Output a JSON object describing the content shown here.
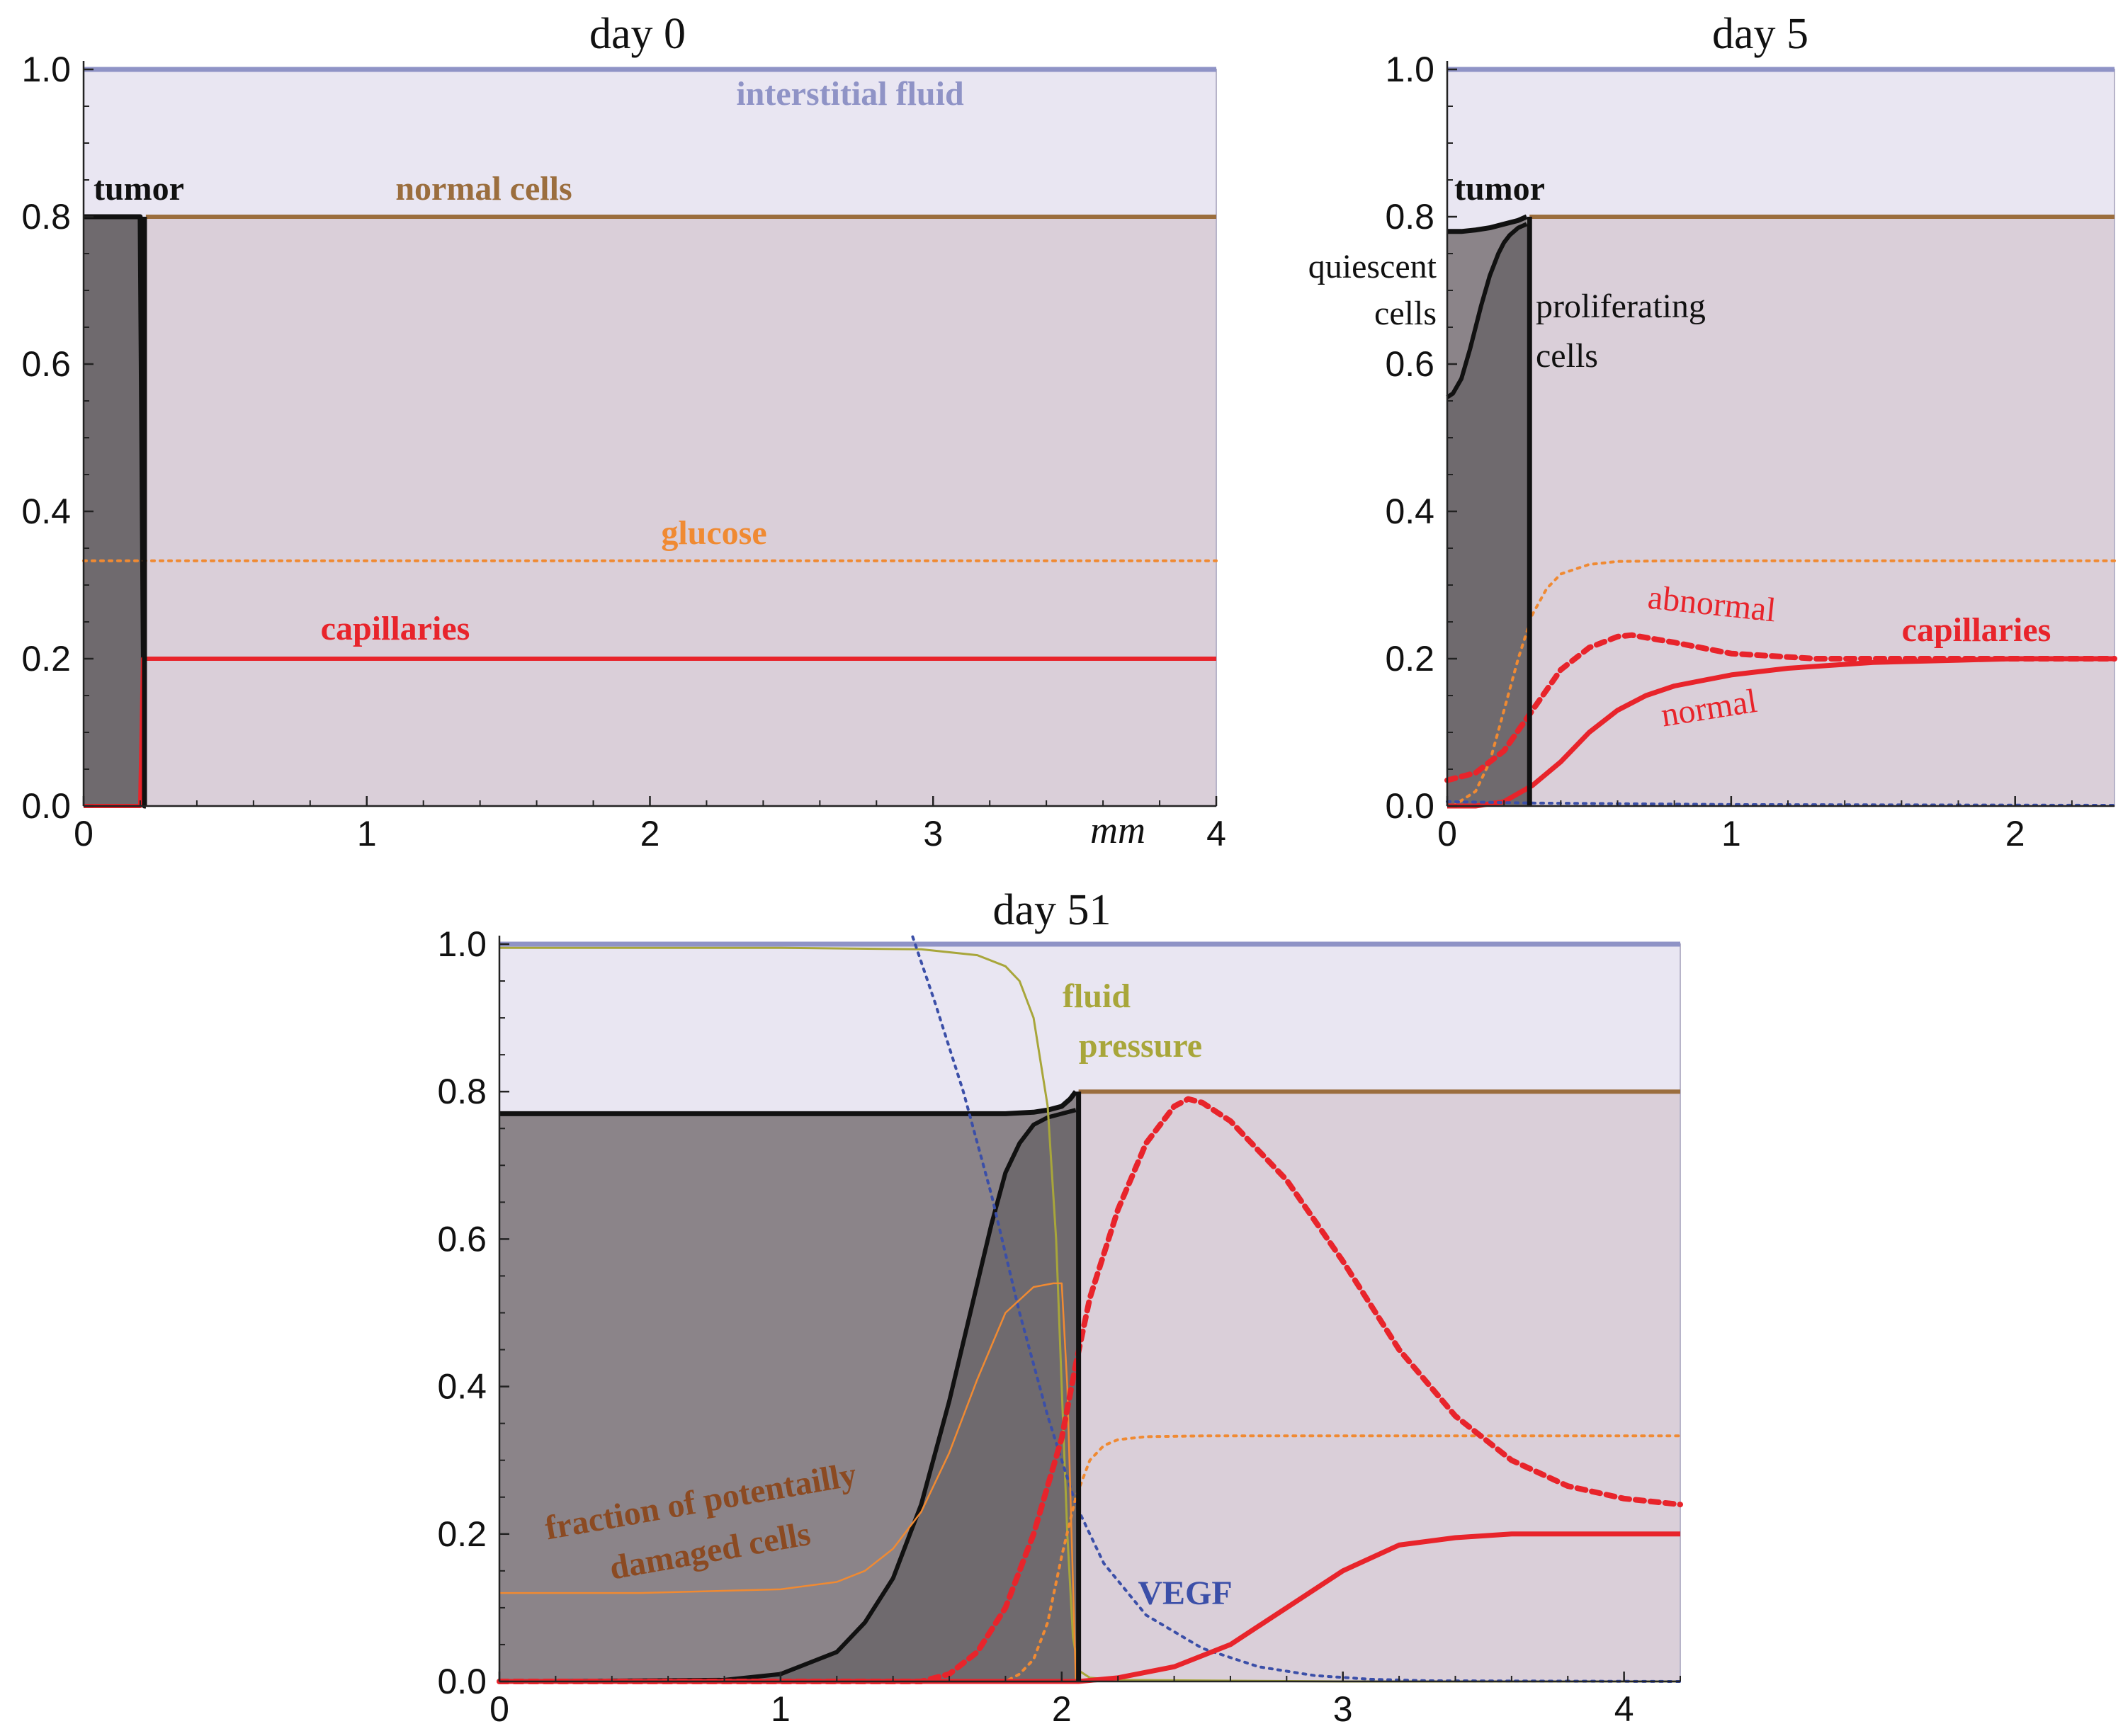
{
  "colors": {
    "fluid_fill": "#e9e6f2",
    "normal_fill": "#dacfd9",
    "tumor_dark": "#6f6a6e",
    "tumor_light": "#8b8489",
    "interstitial_line": "#8f93c6",
    "normal_line": "#9b6e3e",
    "tumor_line": "#111111",
    "capillary": "#e8242b",
    "glucose": "#f08a32",
    "fluid_pressure": "#a8a63a",
    "vegf": "#3b4fa8",
    "damaged": "#8b4a22"
  },
  "chart_data": [
    {
      "id": "day0",
      "type": "area",
      "title": "day 0",
      "xlabel": "mm",
      "ylabel": "",
      "xlim": [
        0,
        4
      ],
      "ylim": [
        0,
        1.0
      ],
      "xticks": [
        "0",
        "1",
        "2",
        "3",
        "4"
      ],
      "yticks": [
        "0.0",
        "0.2",
        "0.4",
        "0.6",
        "0.8",
        "1.0"
      ],
      "labels": {
        "interstitial": "interstitial fluid",
        "tumor": "tumor",
        "normal": "normal cells",
        "glucose": "glucose",
        "capillaries": "capillaries"
      },
      "series": [
        {
          "name": "interstitial fluid",
          "x": [
            0,
            4
          ],
          "values": [
            1.0,
            1.0
          ]
        },
        {
          "name": "normal cells",
          "x": [
            0.22,
            4
          ],
          "values": [
            0.8,
            0.8
          ]
        },
        {
          "name": "tumor",
          "x": [
            0,
            0.2,
            0.215,
            0.22
          ],
          "values": [
            0.8,
            0.8,
            0.0,
            0.0
          ]
        },
        {
          "name": "glucose",
          "x": [
            0,
            4
          ],
          "values": [
            0.333,
            0.333
          ]
        },
        {
          "name": "capillaries",
          "x": [
            0,
            0.2,
            0.21,
            4
          ],
          "values": [
            0.0,
            0.0,
            0.2,
            0.2
          ]
        }
      ]
    },
    {
      "id": "day5",
      "type": "area",
      "title": "day 5",
      "xlim": [
        0,
        2.35
      ],
      "ylim": [
        0,
        1.0
      ],
      "xticks": [
        "0",
        "1",
        "2"
      ],
      "yticks": [
        "0.0",
        "0.2",
        "0.4",
        "0.6",
        "0.8",
        "1.0"
      ],
      "labels": {
        "tumor": "tumor",
        "quiescent_1": "quiescent",
        "quiescent_2": "cells",
        "proliferating_1": "proliferating",
        "proliferating_2": "cells",
        "abnormal": "abnormal",
        "normal": "normal",
        "capillaries": "capillaries"
      },
      "series": [
        {
          "name": "interstitial fluid",
          "x": [
            0,
            2.35
          ],
          "values": [
            1.0,
            1.0
          ]
        },
        {
          "name": "normal cells",
          "x": [
            0.29,
            2.35
          ],
          "values": [
            0.8,
            0.8
          ]
        },
        {
          "name": "tumor total",
          "x": [
            0,
            0.05,
            0.1,
            0.15,
            0.2,
            0.25,
            0.28
          ],
          "values": [
            0.78,
            0.78,
            0.782,
            0.785,
            0.79,
            0.795,
            0.8
          ]
        },
        {
          "name": "quiescent boundary",
          "x": [
            0,
            0.02,
            0.05,
            0.08,
            0.1,
            0.12,
            0.15,
            0.18,
            0.2,
            0.22,
            0.25,
            0.28
          ],
          "values": [
            0.555,
            0.56,
            0.58,
            0.62,
            0.65,
            0.68,
            0.72,
            0.75,
            0.765,
            0.775,
            0.785,
            0.79
          ]
        },
        {
          "name": "glucose",
          "x": [
            0.02,
            0.1,
            0.15,
            0.2,
            0.25,
            0.3,
            0.35,
            0.4,
            0.5,
            0.6,
            0.8,
            1.0,
            2.35
          ],
          "values": [
            0.0,
            0.02,
            0.06,
            0.13,
            0.2,
            0.26,
            0.295,
            0.315,
            0.328,
            0.332,
            0.333,
            0.333,
            0.333
          ]
        },
        {
          "name": "capillaries abnormal",
          "x": [
            0,
            0.1,
            0.2,
            0.3,
            0.4,
            0.5,
            0.6,
            0.65,
            0.8,
            1.0,
            1.3,
            1.6,
            2.0,
            2.35
          ],
          "values": [
            0.035,
            0.045,
            0.075,
            0.13,
            0.185,
            0.215,
            0.23,
            0.232,
            0.222,
            0.207,
            0.2,
            0.2,
            0.2,
            0.2
          ]
        },
        {
          "name": "capillaries normal",
          "x": [
            0,
            0.1,
            0.2,
            0.3,
            0.4,
            0.5,
            0.6,
            0.7,
            0.8,
            1.0,
            1.2,
            1.5,
            1.8,
            2.0,
            2.35
          ],
          "values": [
            0.0,
            0.0,
            0.006,
            0.028,
            0.06,
            0.1,
            0.13,
            0.15,
            0.163,
            0.178,
            0.187,
            0.195,
            0.198,
            0.2,
            0.2
          ]
        },
        {
          "name": "vegf",
          "x": [
            0,
            0.3,
            1.0,
            2.35
          ],
          "values": [
            0.006,
            0.004,
            0.002,
            0.001
          ]
        }
      ]
    },
    {
      "id": "day51",
      "type": "area",
      "title": "day 51",
      "xlim": [
        0,
        4.2
      ],
      "ylim": [
        0,
        1.0
      ],
      "xticks": [
        "0",
        "1",
        "2",
        "3",
        "4"
      ],
      "yticks": [
        "0.0",
        "0.2",
        "0.4",
        "0.6",
        "0.8",
        "1.0"
      ],
      "labels": {
        "fluid_1": "fluid",
        "fluid_2": "pressure",
        "damaged_1": "fraction of potentailly",
        "damaged_2": "damaged cells",
        "vegf": "VEGF"
      },
      "series": [
        {
          "name": "interstitial fluid",
          "x": [
            0,
            4.2
          ],
          "values": [
            1.0,
            1.0
          ]
        },
        {
          "name": "normal cells",
          "x": [
            2.06,
            4.2
          ],
          "values": [
            0.8,
            0.8
          ]
        },
        {
          "name": "tumor total",
          "x": [
            0,
            0.5,
            1.0,
            1.5,
            1.8,
            1.9,
            1.95,
            2.0,
            2.03,
            2.05
          ],
          "values": [
            0.77,
            0.77,
            0.77,
            0.77,
            0.77,
            0.772,
            0.775,
            0.78,
            0.79,
            0.8
          ]
        },
        {
          "name": "proliferating boundary",
          "x": [
            0,
            0.8,
            1.0,
            1.2,
            1.3,
            1.4,
            1.5,
            1.6,
            1.7,
            1.75,
            1.8,
            1.85,
            1.9,
            1.95,
            2.0,
            2.05
          ],
          "values": [
            0.0,
            0.002,
            0.01,
            0.04,
            0.08,
            0.14,
            0.24,
            0.38,
            0.54,
            0.62,
            0.69,
            0.73,
            0.755,
            0.765,
            0.77,
            0.775
          ]
        },
        {
          "name": "fluid pressure",
          "x": [
            0,
            0.5,
            1.0,
            1.5,
            1.7,
            1.8,
            1.85,
            1.9,
            1.95,
            1.98,
            2.0,
            2.02,
            2.04,
            2.06,
            2.1,
            2.2,
            3.0,
            4.2
          ],
          "values": [
            0.995,
            0.995,
            0.995,
            0.993,
            0.985,
            0.97,
            0.95,
            0.9,
            0.78,
            0.6,
            0.4,
            0.2,
            0.06,
            0.015,
            0.005,
            0.002,
            0.0,
            0.0
          ]
        },
        {
          "name": "vegf",
          "x": [
            1.47,
            1.55,
            1.65,
            1.75,
            1.85,
            1.95,
            2.05,
            2.15,
            2.3,
            2.5,
            2.7,
            2.9,
            3.1,
            3.3,
            4.2
          ],
          "values": [
            1.01,
            0.92,
            0.8,
            0.66,
            0.5,
            0.36,
            0.24,
            0.16,
            0.09,
            0.045,
            0.02,
            0.008,
            0.003,
            0.001,
            0.0
          ]
        },
        {
          "name": "damaged fraction",
          "x": [
            0,
            0.5,
            1.0,
            1.2,
            1.3,
            1.4,
            1.5,
            1.6,
            1.7,
            1.8,
            1.9,
            1.97,
            2.0,
            2.02,
            2.05
          ],
          "values": [
            0.12,
            0.12,
            0.125,
            0.135,
            0.15,
            0.18,
            0.23,
            0.31,
            0.41,
            0.5,
            0.535,
            0.54,
            0.54,
            0.4,
            0.0
          ]
        },
        {
          "name": "glucose",
          "x": [
            0,
            1.8,
            1.85,
            1.9,
            1.95,
            2.0,
            2.05,
            2.1,
            2.15,
            2.2,
            2.3,
            2.5,
            3.0,
            4.2
          ],
          "values": [
            0.0,
            0.0,
            0.01,
            0.03,
            0.08,
            0.17,
            0.25,
            0.3,
            0.32,
            0.328,
            0.332,
            0.333,
            0.333,
            0.333
          ]
        },
        {
          "name": "capillaries abnormal",
          "x": [
            0,
            1.5,
            1.6,
            1.7,
            1.8,
            1.9,
            2.0,
            2.05,
            2.1,
            2.2,
            2.3,
            2.4,
            2.45,
            2.5,
            2.6,
            2.8,
            3.0,
            3.2,
            3.4,
            3.6,
            3.8,
            4.0,
            4.2
          ],
          "values": [
            0.0,
            0.0,
            0.01,
            0.04,
            0.1,
            0.2,
            0.33,
            0.43,
            0.52,
            0.64,
            0.73,
            0.78,
            0.79,
            0.785,
            0.76,
            0.68,
            0.57,
            0.45,
            0.36,
            0.3,
            0.265,
            0.248,
            0.24
          ]
        },
        {
          "name": "capillaries normal",
          "x": [
            0,
            2.06,
            2.2,
            2.4,
            2.6,
            2.8,
            3.0,
            3.2,
            3.4,
            3.6,
            3.8,
            4.0,
            4.2
          ],
          "values": [
            0.0,
            0.0,
            0.005,
            0.02,
            0.05,
            0.1,
            0.15,
            0.185,
            0.195,
            0.2,
            0.2,
            0.2,
            0.2
          ]
        }
      ]
    }
  ]
}
